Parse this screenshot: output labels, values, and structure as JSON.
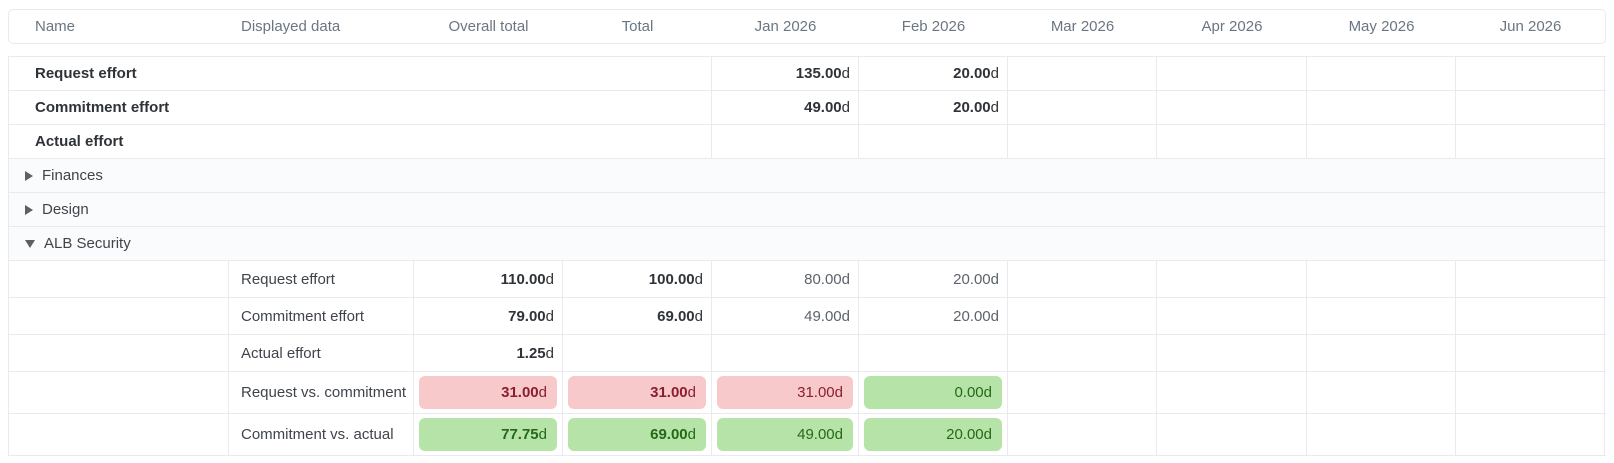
{
  "colors": {
    "border": "#e8eaed",
    "header-text": "#6b7683",
    "text-strong": "#2f3338",
    "text-regular": "#3f444b",
    "text-muted": "#5c636b",
    "icon": "#596066",
    "group-row-bg": "#fafbfc",
    "negative-bg": "#f8c9cb",
    "negative-text": "#8b1e2e",
    "positive-bg": "#b6e4a8",
    "positive-text": "#256818"
  },
  "header": {
    "columns": [
      "Name",
      "Displayed data",
      "Overall total",
      "Total",
      "Jan 2026",
      "Feb 2026",
      "Mar 2026",
      "Apr 2026",
      "May 2026",
      "Jun 2026"
    ]
  },
  "rows": [
    {
      "name": "Request effort",
      "jan": {
        "n": "135.00",
        "u": "d"
      },
      "feb": {
        "n": "20.00",
        "u": "d"
      }
    },
    {
      "name": "Commitment effort",
      "jan": {
        "n": "49.00",
        "u": "d"
      },
      "feb": {
        "n": "20.00",
        "u": "d"
      }
    },
    {
      "name": "Actual effort"
    },
    {
      "name": "Finances",
      "state": "collapsed",
      "icon": "triangle-right-icon"
    },
    {
      "name": "Design",
      "state": "collapsed",
      "icon": "triangle-right-icon"
    },
    {
      "name": "ALB Security",
      "state": "expanded",
      "icon": "triangle-down-icon"
    },
    {
      "displayed": "Request effort",
      "overall": {
        "n": "110.00",
        "u": "d"
      },
      "total": {
        "n": "100.00",
        "u": "d"
      },
      "jan": {
        "n": "80.00",
        "u": "d"
      },
      "feb": {
        "n": "20.00",
        "u": "d"
      }
    },
    {
      "displayed": "Commitment effort",
      "overall": {
        "n": "79.00",
        "u": "d"
      },
      "total": {
        "n": "69.00",
        "u": "d"
      },
      "jan": {
        "n": "49.00",
        "u": "d"
      },
      "feb": {
        "n": "20.00",
        "u": "d"
      }
    },
    {
      "displayed": "Actual effort",
      "overall": {
        "n": "1.25",
        "u": "d"
      }
    },
    {
      "displayed": "Request vs. commitment",
      "overall": {
        "n": "31.00",
        "u": "d",
        "status": "negative"
      },
      "total": {
        "n": "31.00",
        "u": "d",
        "status": "negative"
      },
      "jan": {
        "n": "31.00",
        "u": "d",
        "status": "negative"
      },
      "feb": {
        "n": "0.00",
        "u": "d",
        "status": "positive"
      }
    },
    {
      "displayed": "Commitment vs. actual",
      "overall": {
        "n": "77.75",
        "u": "d",
        "status": "positive"
      },
      "total": {
        "n": "69.00",
        "u": "d",
        "status": "positive"
      },
      "jan": {
        "n": "49.00",
        "u": "d",
        "status": "positive"
      },
      "feb": {
        "n": "20.00",
        "u": "d",
        "status": "positive"
      }
    }
  ]
}
